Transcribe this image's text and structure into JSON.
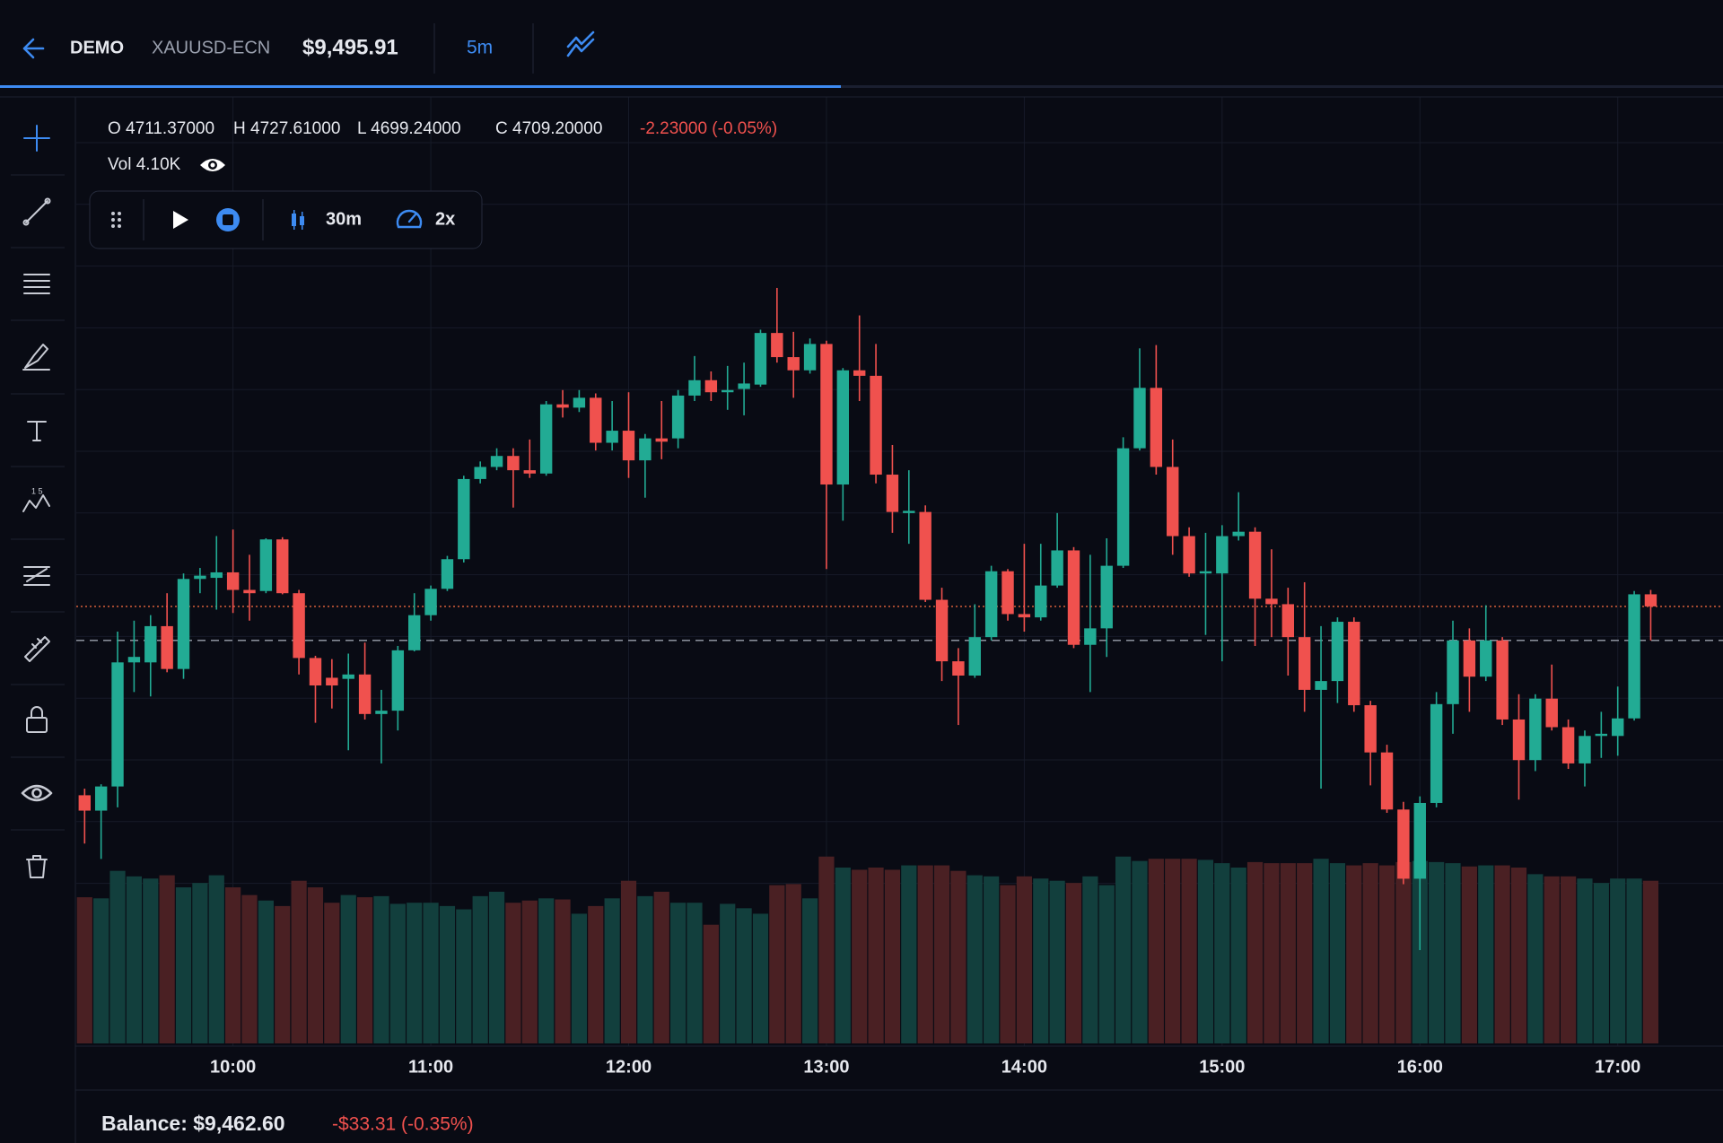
{
  "header": {
    "account": "DEMO",
    "symbol": "XAUUSD-ECN",
    "equity": "$9,495.91",
    "timeframe": "5m"
  },
  "legend": {
    "ohlc": [
      "O 4711.37000",
      "H 4727.61000",
      "L 4699.24000",
      "C 4709.20000"
    ],
    "change": "-2.23000 (-0.05%)",
    "volume": "Vol 4.10K"
  },
  "replay": {
    "interval": "30m",
    "speed": "2x"
  },
  "footer": {
    "balance": "Balance: $9,462.60",
    "pnl": "-$33.31 (-0.35%)"
  },
  "chart_data": {
    "type": "candlestick",
    "categories": [
      null,
      null,
      null,
      null,
      null,
      null,
      null,
      null,
      null,
      "10:00",
      null,
      null,
      null,
      null,
      null,
      null,
      null,
      null,
      null,
      null,
      null,
      "11:00",
      null,
      null,
      null,
      null,
      null,
      null,
      null,
      null,
      null,
      null,
      null,
      "12:00",
      null,
      null,
      null,
      null,
      null,
      null,
      null,
      null,
      null,
      null,
      null,
      "13:00",
      null,
      null,
      null,
      null,
      null,
      null,
      null,
      null,
      null,
      null,
      null,
      "14:00",
      null,
      null,
      null,
      null,
      null,
      null,
      null,
      null,
      null,
      null,
      null,
      "15:00",
      null,
      null,
      null,
      null,
      null,
      null,
      null,
      null,
      null,
      null,
      null,
      "16:00",
      null,
      null,
      null,
      null,
      null,
      null,
      null,
      null,
      null,
      null,
      null,
      "17:00",
      null,
      null
    ],
    "open": [
      4624,
      4617,
      4628,
      4684.5,
      4684.5,
      4701,
      4681.5,
      4722.5,
      4723,
      4725.5,
      4717.5,
      4717,
      4740.5,
      4716,
      4686.5,
      4677.5,
      4677,
      4679,
      4661,
      4662.5,
      4690,
      4706,
      4718,
      4731.5,
      4768,
      4773.5,
      4778.5,
      4772,
      4770.5,
      4802,
      4800.5,
      4805,
      4784.5,
      4790,
      4776.5,
      4786.5,
      4786.5,
      4806,
      4813,
      4807.5,
      4809,
      4811,
      4834.5,
      4823.5,
      4817.5,
      4829.5,
      4765.5,
      4817.5,
      4815,
      4770,
      4752.5,
      4753,
      4713,
      4685,
      4678.5,
      4696,
      4726,
      4706.5,
      4705,
      4719.5,
      4735.5,
      4692.5,
      4700,
      4728.5,
      4782,
      4809.5,
      4773.5,
      4742,
      4725,
      4725,
      4742,
      4744,
      4713.5,
      4711,
      4696,
      4672,
      4676,
      4703,
      4665,
      4643.5,
      4617.5,
      4586,
      4620.5,
      4665.5,
      4694.5,
      4678,
      4694.5,
      4658.5,
      4640,
      4668,
      4655,
      4638.5,
      4651,
      4651,
      4659,
      4715.5
    ],
    "high": [
      4627,
      4629,
      4698.5,
      4703.5,
      4706,
      4716,
      4725,
      4727.5,
      4742,
      4745,
      4733.5,
      4741,
      4741.5,
      4717.5,
      4687.5,
      4686,
      4688.5,
      4693.5,
      4672,
      4692,
      4716,
      4719.5,
      4733,
      4769.5,
      4776,
      4782,
      4782,
      4786,
      4803.5,
      4808.5,
      4808.5,
      4807,
      4803.5,
      4807.5,
      4788.5,
      4803.5,
      4808.5,
      4824,
      4817,
      4819.5,
      4821,
      4836,
      4855,
      4835,
      4832,
      4831,
      4818.5,
      4842.5,
      4829.5,
      4783.5,
      4772,
      4756,
      4718.5,
      4691,
      4711,
      4728.5,
      4727,
      4738.5,
      4738.5,
      4752.5,
      4737,
      4733.5,
      4741,
      4787,
      4827.5,
      4829,
      4786,
      4746,
      4743.5,
      4747,
      4762,
      4746,
      4736,
      4718.5,
      4721,
      4701,
      4705,
      4705,
      4667,
      4647,
      4621,
      4623.5,
      4671,
      4703.5,
      4700,
      4710.5,
      4696,
      4670,
      4670,
      4683.5,
      4658.5,
      4653.5,
      4662,
      4673.5,
      4717,
      4717.5
    ],
    "low": [
      4602,
      4595,
      4618.5,
      4671,
      4669,
      4680,
      4677,
      4716,
      4708.5,
      4707,
      4703.5,
      4716,
      4715.5,
      4679,
      4657,
      4663.5,
      4644.5,
      4658.5,
      4638.5,
      4653.5,
      4689.5,
      4703.5,
      4717,
      4730,
      4766,
      4772,
      4755,
      4768.5,
      4769.5,
      4796,
      4798.5,
      4781,
      4781,
      4768.5,
      4759.5,
      4777,
      4782,
      4803.5,
      4803.5,
      4799.5,
      4797,
      4810,
      4821,
      4805,
      4816,
      4727,
      4749,
      4803.5,
      4766,
      4743.5,
      4738.5,
      4712,
      4676,
      4656,
      4677.5,
      4694.5,
      4703.5,
      4698.5,
      4703.5,
      4718.5,
      4691,
      4671,
      4687,
      4727.5,
      4781,
      4770,
      4733.5,
      4723.5,
      4697,
      4685,
      4740,
      4692,
      4696,
      4678.5,
      4662,
      4627,
      4666,
      4662,
      4628.5,
      4616,
      4583.5,
      4553.5,
      4618.5,
      4652,
      4662,
      4676,
      4656,
      4622,
      4635,
      4653.5,
      4636,
      4628,
      4641,
      4642,
      4658,
      4694.5
    ],
    "close": [
      4617,
      4628,
      4684.5,
      4687,
      4701,
      4681.5,
      4722.5,
      4724,
      4725.5,
      4717.5,
      4716,
      4740.5,
      4716,
      4686.5,
      4674,
      4674,
      4679,
      4661,
      4662.5,
      4690,
      4706,
      4718,
      4731.5,
      4768,
      4773.5,
      4778.5,
      4772,
      4770.5,
      4802,
      4800.5,
      4805,
      4784.5,
      4790,
      4776.5,
      4786.5,
      4785,
      4806,
      4813,
      4807.5,
      4808.5,
      4811.5,
      4834.5,
      4823.5,
      4817.5,
      4829.5,
      4765.5,
      4817.5,
      4815,
      4770,
      4753,
      4753.5,
      4713,
      4685,
      4678.5,
      4696,
      4726,
      4706.5,
      4705,
      4719.5,
      4735.5,
      4692.5,
      4700,
      4728.5,
      4782,
      4809.5,
      4773.5,
      4742,
      4725,
      4726,
      4742,
      4744,
      4713.5,
      4711,
      4696,
      4672,
      4676,
      4703,
      4665,
      4643.5,
      4617.5,
      4586,
      4620.5,
      4665.5,
      4694.5,
      4678,
      4694.5,
      4658.5,
      4640,
      4668,
      4655,
      4638.5,
      4651,
      4652,
      4659,
      4715.5,
      4710
    ],
    "volume": [
      3325,
      3300,
      3925,
      3800,
      3750,
      3825,
      3550,
      3650,
      3825,
      3550,
      3375,
      3250,
      3125,
      3700,
      3550,
      3200,
      3375,
      3325,
      3350,
      3175,
      3200,
      3200,
      3125,
      3050,
      3350,
      3450,
      3200,
      3250,
      3300,
      3275,
      2950,
      3125,
      3300,
      3700,
      3350,
      3450,
      3200,
      3200,
      2700,
      3175,
      3075,
      2950,
      3600,
      3625,
      3300,
      4250,
      4000,
      3950,
      4000,
      3950,
      4050,
      4050,
      4050,
      3925,
      3825,
      3800,
      3600,
      3800,
      3750,
      3700,
      3650,
      3800,
      3600,
      4250,
      4150,
      4200,
      4200,
      4200,
      4175,
      4100,
      4000,
      4125,
      4100,
      4100,
      4100,
      4200,
      4100,
      4050,
      4100,
      4050,
      4125,
      4150,
      4125,
      4100,
      4025,
      4050,
      4050,
      4000,
      3850,
      3800,
      3800,
      3750,
      3650,
      3750,
      3750,
      3700
    ],
    "up_color": "#22ab94",
    "down_color": "#f0514e",
    "volume_up_color": "#123f3d",
    "volume_down_color": "#4a2023",
    "ylim": [
      4511,
      4942
    ],
    "y2lim": [
      0,
      6000
    ],
    "grid": true,
    "price_lines": [
      {
        "value": 4710,
        "color": "#e8663d",
        "style": "dotted"
      },
      {
        "value": 4694.5,
        "color": "#9aa0ad",
        "style": "dashed"
      }
    ]
  }
}
